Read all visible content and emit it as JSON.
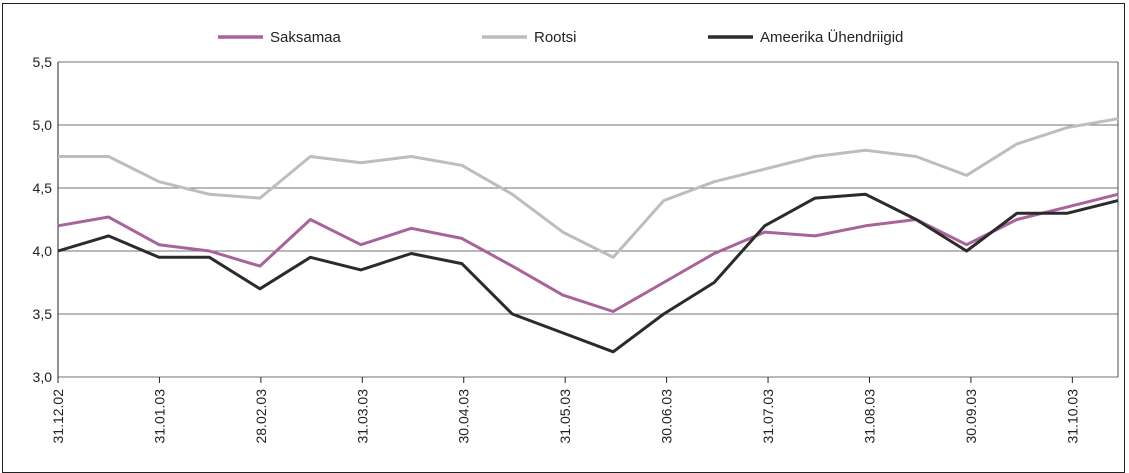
{
  "chart_data": {
    "type": "line",
    "title": "",
    "xlabel": "",
    "ylabel": "",
    "ylim": [
      3.0,
      5.5
    ],
    "y_ticks": [
      "3,0",
      "3,5",
      "4,0",
      "4,5",
      "5,0",
      "5,5"
    ],
    "grid": "horizontal",
    "legend_position": "top",
    "x_ticks": [
      "31.12.02",
      "31.01.03",
      "28.02.03",
      "31.03.03",
      "30.04.03",
      "31.05.03",
      "30.06.03",
      "31.07.03",
      "31.08.03",
      "30.09.03",
      "31.10.03"
    ],
    "x": [
      "31.12.02",
      "15.01.03",
      "31.01.03",
      "14.02.03",
      "28.02.03",
      "14.03.03",
      "31.03.03",
      "15.04.03",
      "30.04.03",
      "15.05.03",
      "31.05.03",
      "15.06.03",
      "30.06.03",
      "15.07.03",
      "31.07.03",
      "15.08.03",
      "31.08.03",
      "15.09.03",
      "30.09.03",
      "15.10.03",
      "31.10.03",
      "14.11.03"
    ],
    "series": [
      {
        "name": "Saksamaa",
        "color": "#a8649a",
        "values": [
          4.2,
          4.27,
          4.05,
          4.0,
          3.88,
          4.25,
          4.05,
          4.18,
          4.1,
          3.88,
          3.65,
          3.52,
          3.75,
          3.98,
          4.15,
          4.12,
          4.2,
          4.25,
          4.05,
          4.25,
          4.35,
          4.45
        ]
      },
      {
        "name": "Rootsi",
        "color": "#bdbdbd",
        "values": [
          4.75,
          4.75,
          4.55,
          4.45,
          4.42,
          4.75,
          4.7,
          4.75,
          4.68,
          4.45,
          4.15,
          3.95,
          4.4,
          4.55,
          4.65,
          4.75,
          4.8,
          4.75,
          4.6,
          4.85,
          4.98,
          5.05
        ]
      },
      {
        "name": "Ameerika Ühendriigid",
        "color": "#2b2b2b",
        "values": [
          4.0,
          4.12,
          3.95,
          3.95,
          3.7,
          3.95,
          3.85,
          3.98,
          3.9,
          3.5,
          3.35,
          3.2,
          3.5,
          3.75,
          4.2,
          4.42,
          4.45,
          4.25,
          4.0,
          4.3,
          4.3,
          4.4
        ]
      }
    ]
  }
}
